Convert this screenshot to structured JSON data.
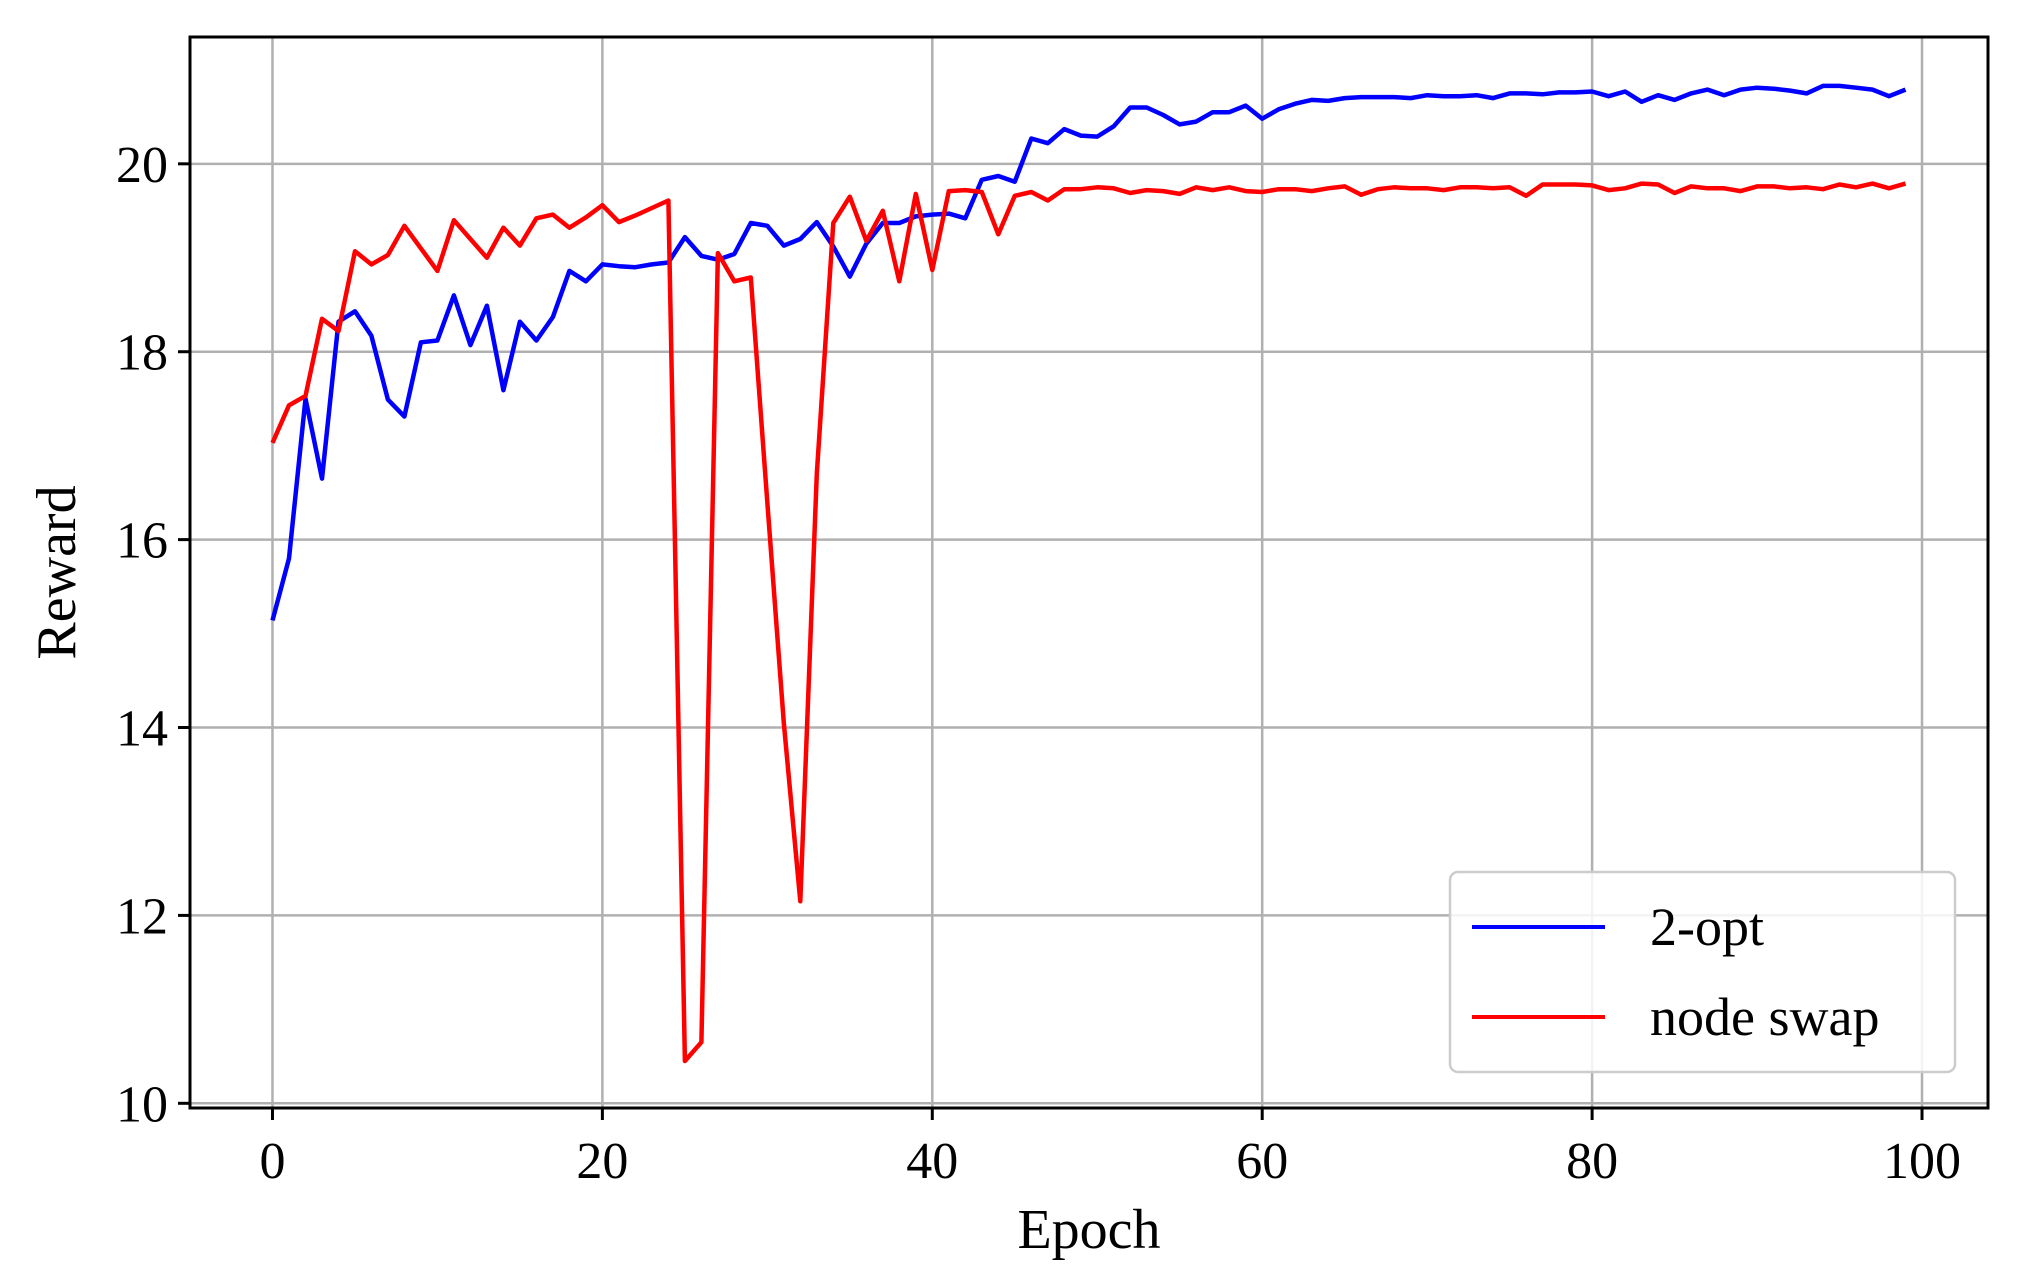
{
  "chart_data": {
    "type": "line",
    "title": "",
    "xlabel": "Epoch",
    "ylabel": "Reward",
    "xlim": [
      -5,
      104
    ],
    "ylim": [
      9.95,
      21.35
    ],
    "xticks": [
      0,
      20,
      40,
      60,
      80,
      100
    ],
    "yticks": [
      10,
      12,
      14,
      16,
      18,
      20
    ],
    "grid": true,
    "legend_position": "lower-right",
    "series": [
      {
        "name": "2-opt",
        "color": "#0000ff",
        "x": [
          0,
          1,
          2,
          3,
          4,
          5,
          6,
          7,
          8,
          9,
          10,
          11,
          12,
          13,
          14,
          15,
          16,
          17,
          18,
          19,
          20,
          21,
          22,
          23,
          24,
          25,
          26,
          27,
          28,
          29,
          30,
          31,
          32,
          33,
          34,
          35,
          36,
          37,
          38,
          39,
          40,
          41,
          42,
          43,
          44,
          45,
          46,
          47,
          48,
          49,
          50,
          51,
          52,
          53,
          54,
          55,
          56,
          57,
          58,
          59,
          60,
          61,
          62,
          63,
          64,
          65,
          66,
          67,
          68,
          69,
          70,
          71,
          72,
          73,
          74,
          75,
          76,
          77,
          78,
          79,
          80,
          81,
          82,
          83,
          84,
          85,
          86,
          87,
          88,
          89,
          90,
          91,
          92,
          93,
          94,
          95,
          96,
          97,
          98,
          99
        ],
        "values": [
          15.14,
          15.8,
          17.5,
          16.65,
          18.32,
          18.43,
          18.17,
          17.49,
          17.31,
          18.1,
          18.12,
          18.6,
          18.07,
          18.49,
          17.59,
          18.32,
          18.12,
          18.37,
          18.86,
          18.75,
          18.93,
          18.91,
          18.9,
          18.93,
          18.95,
          19.22,
          19.02,
          18.98,
          19.04,
          19.37,
          19.34,
          19.13,
          19.2,
          19.38,
          19.12,
          18.8,
          19.15,
          19.37,
          19.37,
          19.44,
          19.46,
          19.47,
          19.42,
          19.83,
          19.87,
          19.81,
          20.27,
          20.22,
          20.37,
          20.3,
          20.29,
          20.4,
          20.6,
          20.6,
          20.52,
          20.42,
          20.45,
          20.55,
          20.55,
          20.62,
          20.48,
          20.58,
          20.64,
          20.68,
          20.67,
          20.7,
          20.71,
          20.71,
          20.71,
          20.7,
          20.73,
          20.72,
          20.72,
          20.73,
          20.7,
          20.75,
          20.75,
          20.74,
          20.76,
          20.76,
          20.77,
          20.72,
          20.77,
          20.66,
          20.73,
          20.68,
          20.75,
          20.79,
          20.73,
          20.79,
          20.81,
          20.8,
          20.78,
          20.75,
          20.83,
          20.83,
          20.81,
          20.79,
          20.72,
          20.79
        ]
      },
      {
        "name": "node swap",
        "color": "#ff0000",
        "x": [
          0,
          1,
          2,
          3,
          4,
          5,
          6,
          7,
          8,
          9,
          10,
          11,
          12,
          13,
          14,
          15,
          16,
          17,
          18,
          19,
          20,
          21,
          22,
          23,
          24,
          25,
          26,
          27,
          28,
          29,
          30,
          31,
          32,
          33,
          34,
          35,
          36,
          37,
          38,
          39,
          40,
          41,
          42,
          43,
          44,
          45,
          46,
          47,
          48,
          49,
          50,
          51,
          52,
          53,
          54,
          55,
          56,
          57,
          58,
          59,
          60,
          61,
          62,
          63,
          64,
          65,
          66,
          67,
          68,
          69,
          70,
          71,
          72,
          73,
          74,
          75,
          76,
          77,
          78,
          79,
          80,
          81,
          82,
          83,
          84,
          85,
          86,
          87,
          88,
          89,
          90,
          91,
          92,
          93,
          94,
          95,
          96,
          97,
          98,
          99
        ],
        "values": [
          17.03,
          17.43,
          17.53,
          18.35,
          18.22,
          19.07,
          18.93,
          19.03,
          19.34,
          19.1,
          18.86,
          19.4,
          19.2,
          19.0,
          19.32,
          19.13,
          19.42,
          19.46,
          19.32,
          19.43,
          19.56,
          19.38,
          19.45,
          19.53,
          19.61,
          10.45,
          10.65,
          19.05,
          18.75,
          18.79,
          16.4,
          14.05,
          12.15,
          16.7,
          19.37,
          19.65,
          19.18,
          19.5,
          18.75,
          19.68,
          18.87,
          19.71,
          19.72,
          19.7,
          19.25,
          19.66,
          19.7,
          19.61,
          19.73,
          19.73,
          19.75,
          19.74,
          19.69,
          19.72,
          19.71,
          19.68,
          19.75,
          19.72,
          19.75,
          19.71,
          19.7,
          19.73,
          19.73,
          19.71,
          19.74,
          19.76,
          19.67,
          19.73,
          19.75,
          19.74,
          19.74,
          19.72,
          19.75,
          19.75,
          19.74,
          19.75,
          19.66,
          19.78,
          19.78,
          19.78,
          19.77,
          19.72,
          19.74,
          19.79,
          19.78,
          19.69,
          19.76,
          19.74,
          19.74,
          19.71,
          19.76,
          19.76,
          19.74,
          19.75,
          19.73,
          19.78,
          19.75,
          19.79,
          19.74,
          19.79
        ]
      }
    ]
  }
}
